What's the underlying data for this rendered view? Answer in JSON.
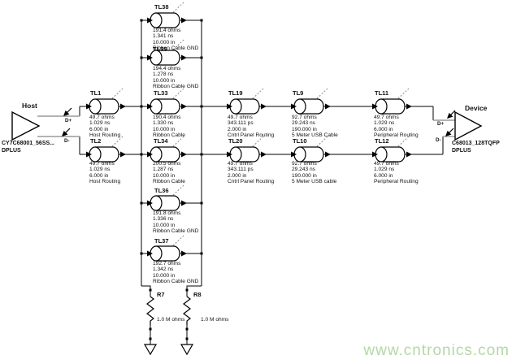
{
  "host": {
    "label": "Host",
    "part": "CY7C68001_56SS...",
    "net": "DPLUS",
    "pin_plus": "D+",
    "pin_minus": "D-"
  },
  "device": {
    "label": "Device",
    "part": "C68013_128TQFP",
    "net": "DPLUS",
    "pin_plus": "D+",
    "pin_minus": "D-"
  },
  "tlines": [
    {
      "name": "TL38",
      "z": "191.4 ohms",
      "delay": "1.341 ns",
      "len": "10.000 in",
      "net": "Ribbon Cable GND"
    },
    {
      "name": "TL35",
      "z": "194.4 ohms",
      "delay": "1.278 ns",
      "len": "10.000 in",
      "net": "Ribbon Cable GND"
    },
    {
      "name": "TL33",
      "z": "190.4 ohms",
      "delay": "1.330 ns",
      "len": "10.000 in",
      "net": "Ribbon Cable"
    },
    {
      "name": "TL34",
      "z": "200.5 ohms",
      "delay": "1.287 ns",
      "len": "10.000 in",
      "net": "Ribbon Cable"
    },
    {
      "name": "TL36",
      "z": "191.8 ohms",
      "delay": "1.336 ns",
      "len": "10.000 in",
      "net": "Ribbon Cable GND"
    },
    {
      "name": "TL37",
      "z": "192.7 ohms",
      "delay": "1.342 ns",
      "len": "10.000 in",
      "net": "Ribbon Cable GND"
    },
    {
      "name": "TL1",
      "z": "49.7 ohms",
      "delay": "1.029 ns",
      "len": "6.000 in",
      "net": "Host Routing"
    },
    {
      "name": "TL2",
      "z": "49.7 ohms",
      "delay": "1.029 ns",
      "len": "6.000 in",
      "net": "Host Routing"
    },
    {
      "name": "TL19",
      "z": "49.7 ohms",
      "delay": "343.111 ps",
      "len": "2.000 in",
      "net": "Cntrl Panel Routing"
    },
    {
      "name": "TL20",
      "z": "49.7 ohms",
      "delay": "343.111 ps",
      "len": "2.000 in",
      "net": "Cntrl Panel Routing"
    },
    {
      "name": "TL9",
      "z": "92.7 ohms",
      "delay": "29.243 ns",
      "len": "190.000 in",
      "net": "5 Meter USB Cable"
    },
    {
      "name": "TL10",
      "z": "92.7 ohms",
      "delay": "29.243 ns",
      "len": "190.000 in",
      "net": "5 Meter USB cable"
    },
    {
      "name": "TL11",
      "z": "49.7 ohms",
      "delay": "1.029 ns",
      "len": "6.000 in",
      "net": "Peripheral Routing"
    },
    {
      "name": "TL12",
      "z": "49.7 ohms",
      "delay": "1.029 ns",
      "len": "6.000 in",
      "net": "Peripheral Routing"
    }
  ],
  "resistors": [
    {
      "name": "R7",
      "value": "1.0 M ohms"
    },
    {
      "name": "R8",
      "value": "1.0 M ohms"
    }
  ],
  "watermark": {
    "text": "www.cntronics.com",
    "color": "#b4d8a4"
  },
  "colors": {
    "wire": "#000000",
    "highlight": "#9a9a9a"
  }
}
